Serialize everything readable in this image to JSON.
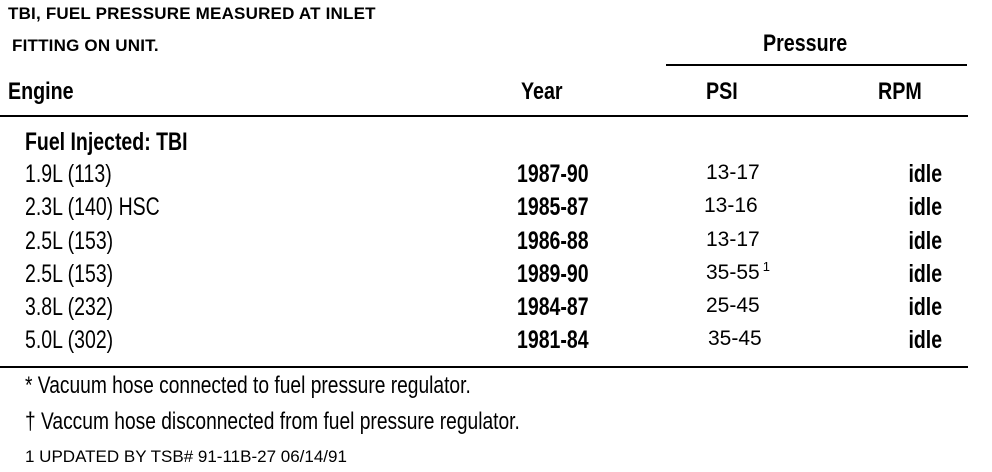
{
  "header": {
    "title_line1": "TBI, FUEL PRESSURE MEASURED AT INLET",
    "title_line2": "FITTING ON UNIT.",
    "group_label": "Pressure"
  },
  "columns": {
    "engine": "Engine",
    "year": "Year",
    "psi": "PSI",
    "rpm": "RPM"
  },
  "section_label": "Fuel Injected: TBI",
  "rows": [
    {
      "engine": "1.9L (113)",
      "year": "1987-90",
      "psi": "13-17",
      "psi_note": "",
      "rpm": "idle"
    },
    {
      "engine": "2.3L (140) HSC",
      "year": "1985-87",
      "psi": "13-16",
      "psi_note": "",
      "rpm": "idle"
    },
    {
      "engine": "2.5L (153)",
      "year": "1986-88",
      "psi": "13-17",
      "psi_note": "",
      "rpm": "idle"
    },
    {
      "engine": "2.5L (153)",
      "year": "1989-90",
      "psi": "35-55",
      "psi_note": "1",
      "rpm": "idle"
    },
    {
      "engine": "3.8L (232)",
      "year": "1984-87",
      "psi": "25-45",
      "psi_note": "",
      "rpm": "idle"
    },
    {
      "engine": "5.0L (302)",
      "year": "1981-84",
      "psi": "35-45",
      "psi_note": "",
      "rpm": "idle"
    }
  ],
  "notes": [
    "* Vacuum hose connected to fuel pressure regulator.",
    "† Vaccum hose disconnected from fuel pressure regulator."
  ],
  "footer": "1 UPDATED BY TSB# 91-11B-27 06/14/91"
}
